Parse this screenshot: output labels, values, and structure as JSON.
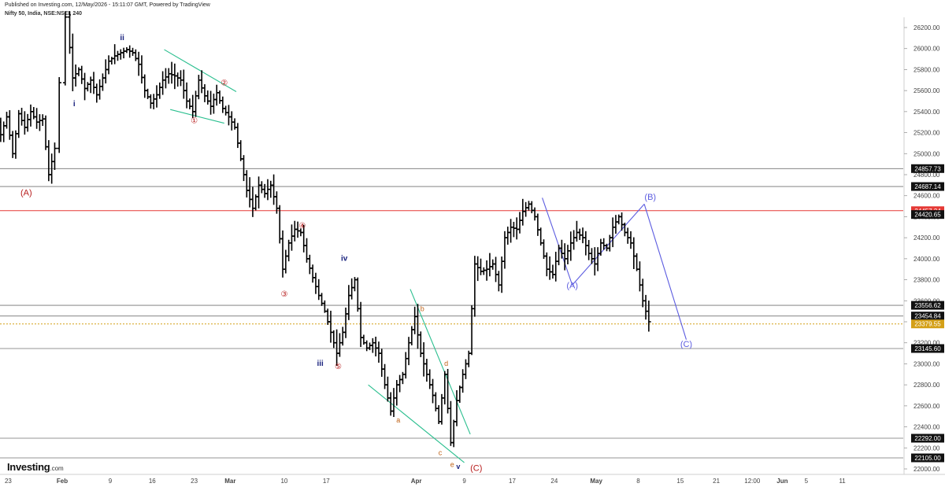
{
  "header": {
    "published": "Published on Investing.com, 12/May/2026 - 15:11:07 GMT, Powered by TradingView",
    "symbol": "Nifty 50, India, NSE:NSEI, 240"
  },
  "logo": {
    "text": "Investing",
    "suffix": ".com"
  },
  "colors": {
    "bars": "#000000",
    "red_line": "#e53935",
    "orange_line": "#d4a017",
    "blue_wave": "#5c5ce0",
    "teal_channel": "#2bbf8f",
    "red_label": "#b71c1c",
    "blue_label": "#1a237e",
    "orange_label": "#c0641a",
    "grid_line": "#000000"
  },
  "chart_data": {
    "type": "ohlc",
    "interval": "240",
    "y_axis": {
      "min": 22000,
      "max": 26200,
      "ticks": [
        22000,
        22200,
        22400,
        22600,
        22800,
        23000,
        23200,
        23400,
        23600,
        23800,
        24000,
        24200,
        24400,
        24600,
        24800,
        25000,
        25200,
        25400,
        25600,
        25800,
        26000,
        26200
      ],
      "tick_labels": [
        "22000.00",
        "22200.00",
        "22400.00",
        "22600.00",
        "22800.00",
        "23000.00",
        "23200.00",
        "23400.00",
        "23600.00",
        "23800.00",
        "24000.00",
        "24200.00",
        "24400.00",
        "24600.00",
        "24800.00",
        "25000.00",
        "25200.00",
        "25400.00",
        "25600.00",
        "25800.00",
        "26000.00",
        "26200.00"
      ]
    },
    "x_axis": {
      "labels": [
        {
          "text": "23",
          "day": -9
        },
        {
          "text": "Feb",
          "day": 0,
          "bold": true
        },
        {
          "text": "9",
          "day": 8
        },
        {
          "text": "16",
          "day": 15
        },
        {
          "text": "23",
          "day": 22
        },
        {
          "text": "Mar",
          "day": 28,
          "bold": true
        },
        {
          "text": "10",
          "day": 37
        },
        {
          "text": "17",
          "day": 44
        },
        {
          "text": "Apr",
          "day": 59,
          "bold": true
        },
        {
          "text": "9",
          "day": 67
        },
        {
          "text": "17",
          "day": 75
        },
        {
          "text": "24",
          "day": 82
        },
        {
          "text": "May",
          "day": 89,
          "bold": true
        },
        {
          "text": "8",
          "day": 96
        },
        {
          "text": "15",
          "day": 103
        },
        {
          "text": "21",
          "day": 109
        },
        {
          "text": "12:00",
          "day": 115
        },
        {
          "text": "Jun",
          "day": 120,
          "bold": true
        },
        {
          "text": "5",
          "day": 124
        },
        {
          "text": "11",
          "day": 130
        }
      ]
    },
    "horizontal_levels": [
      {
        "value": 24857.73,
        "label": "24857.73",
        "style": "gray"
      },
      {
        "value": 24687.14,
        "label": "24687.14",
        "style": "gray"
      },
      {
        "value": 24457.24,
        "label": "24457.24",
        "style": "red"
      },
      {
        "value": 24420.65,
        "label": "24420.65",
        "style": "last"
      },
      {
        "value": 23556.62,
        "label": "23556.62",
        "style": "gray"
      },
      {
        "value": 23454.84,
        "label": "23454.84",
        "style": "gray"
      },
      {
        "value": 23379.55,
        "label": "23379.55",
        "style": "current"
      },
      {
        "value": 23145.6,
        "label": "23145.60",
        "style": "gray"
      },
      {
        "value": 22292.0,
        "label": "22292.00",
        "style": "gray"
      },
      {
        "value": 22105.0,
        "label": "22105.00",
        "style": "gray"
      }
    ],
    "price_path": [
      {
        "day": -12,
        "p": 25100
      },
      {
        "day": -11,
        "p": 25420
      },
      {
        "day": -10,
        "p": 25180
      },
      {
        "day": -9,
        "p": 25350
      },
      {
        "day": -8,
        "p": 25000
      },
      {
        "day": -7,
        "p": 25380
      },
      {
        "day": -6,
        "p": 25250
      },
      {
        "day": -5,
        "p": 25400
      },
      {
        "day": -4,
        "p": 25300
      },
      {
        "day": -3,
        "p": 25330
      },
      {
        "day": -2,
        "p": 24800
      },
      {
        "day": -1,
        "p": 25050
      },
      {
        "day": 1,
        "p": 26300
      },
      {
        "day": 2,
        "p": 25720
      },
      {
        "day": 3,
        "p": 25800
      },
      {
        "day": 4,
        "p": 25620
      },
      {
        "day": 5,
        "p": 25700
      },
      {
        "day": 6,
        "p": 25560
      },
      {
        "day": 7,
        "p": 25720
      },
      {
        "day": 8,
        "p": 25880
      },
      {
        "day": 9,
        "p": 25930
      },
      {
        "day": 10,
        "p": 25960
      },
      {
        "day": 11,
        "p": 25990
      },
      {
        "day": 12,
        "p": 25960
      },
      {
        "day": 13,
        "p": 25850
      },
      {
        "day": 14,
        "p": 25600
      },
      {
        "day": 15,
        "p": 25480
      },
      {
        "day": 16,
        "p": 25560
      },
      {
        "day": 17,
        "p": 25700
      },
      {
        "day": 18,
        "p": 25760
      },
      {
        "day": 19,
        "p": 25740
      },
      {
        "day": 20,
        "p": 25700
      },
      {
        "day": 21,
        "p": 25500
      },
      {
        "day": 22,
        "p": 25400
      },
      {
        "day": 23,
        "p": 25700
      },
      {
        "day": 24,
        "p": 25550
      },
      {
        "day": 25,
        "p": 25450
      },
      {
        "day": 26,
        "p": 25580
      },
      {
        "day": 27,
        "p": 25430
      },
      {
        "day": 28,
        "p": 25350
      },
      {
        "day": 29,
        "p": 25250
      },
      {
        "day": 30,
        "p": 24950
      },
      {
        "day": 31,
        "p": 24650
      },
      {
        "day": 32,
        "p": 24480
      },
      {
        "day": 33,
        "p": 24700
      },
      {
        "day": 34,
        "p": 24620
      },
      {
        "day": 35,
        "p": 24700
      },
      {
        "day": 36,
        "p": 24480
      },
      {
        "day": 37,
        "p": 23900
      },
      {
        "day": 38,
        "p": 24150
      },
      {
        "day": 39,
        "p": 24280
      },
      {
        "day": 40,
        "p": 24250
      },
      {
        "day": 41,
        "p": 24000
      },
      {
        "day": 42,
        "p": 23820
      },
      {
        "day": 43,
        "p": 23650
      },
      {
        "day": 44,
        "p": 23500
      },
      {
        "day": 45,
        "p": 23300
      },
      {
        "day": 46,
        "p": 23100
      },
      {
        "day": 47,
        "p": 23300
      },
      {
        "day": 48,
        "p": 23650
      },
      {
        "day": 49,
        "p": 23800
      },
      {
        "day": 50,
        "p": 23250
      },
      {
        "day": 51,
        "p": 23150
      },
      {
        "day": 52,
        "p": 23200
      },
      {
        "day": 53,
        "p": 23100
      },
      {
        "day": 54,
        "p": 22800
      },
      {
        "day": 55,
        "p": 22550
      },
      {
        "day": 56,
        "p": 22800
      },
      {
        "day": 57,
        "p": 22900
      },
      {
        "day": 58,
        "p": 23200
      },
      {
        "day": 59,
        "p": 23450
      },
      {
        "day": 60,
        "p": 23100
      },
      {
        "day": 61,
        "p": 22900
      },
      {
        "day": 62,
        "p": 22700
      },
      {
        "day": 63,
        "p": 22450
      },
      {
        "day": 64,
        "p": 22900
      },
      {
        "day": 65,
        "p": 22250
      },
      {
        "day": 66,
        "p": 22650
      },
      {
        "day": 67,
        "p": 22900
      },
      {
        "day": 68,
        "p": 23100
      },
      {
        "day": 69,
        "p": 23950
      },
      {
        "day": 70,
        "p": 23880
      },
      {
        "day": 71,
        "p": 23900
      },
      {
        "day": 72,
        "p": 23950
      },
      {
        "day": 73,
        "p": 23750
      },
      {
        "day": 74,
        "p": 24200
      },
      {
        "day": 75,
        "p": 24300
      },
      {
        "day": 76,
        "p": 24280
      },
      {
        "day": 77,
        "p": 24450
      },
      {
        "day": 78,
        "p": 24520
      },
      {
        "day": 79,
        "p": 24400
      },
      {
        "day": 80,
        "p": 24150
      },
      {
        "day": 81,
        "p": 23900
      },
      {
        "day": 82,
        "p": 23850
      },
      {
        "day": 83,
        "p": 24100
      },
      {
        "day": 84,
        "p": 24000
      },
      {
        "day": 85,
        "p": 24150
      },
      {
        "day": 86,
        "p": 24250
      },
      {
        "day": 87,
        "p": 24200
      },
      {
        "day": 88,
        "p": 24050
      },
      {
        "day": 89,
        "p": 23950
      },
      {
        "day": 90,
        "p": 24150
      },
      {
        "day": 91,
        "p": 24100
      },
      {
        "day": 92,
        "p": 24300
      },
      {
        "day": 93,
        "p": 24400
      },
      {
        "day": 94,
        "p": 24250
      },
      {
        "day": 95,
        "p": 24150
      },
      {
        "day": 96,
        "p": 23900
      },
      {
        "day": 97,
        "p": 23600
      },
      {
        "day": 98,
        "p": 23400
      }
    ],
    "annotations": [
      {
        "text": "(A)",
        "day": -6,
        "p": 24600,
        "color": "red",
        "size": 11
      },
      {
        "text": "i",
        "day": 2,
        "p": 25450,
        "color": "blue",
        "size": 10,
        "bold": true
      },
      {
        "text": "ii",
        "day": 10,
        "p": 26080,
        "color": "blue",
        "size": 10,
        "bold": true
      },
      {
        "text": "①",
        "day": 22,
        "p": 25290,
        "color": "red",
        "size": 10
      },
      {
        "text": "②",
        "day": 27,
        "p": 25650,
        "color": "red",
        "size": 10
      },
      {
        "text": "④",
        "day": 40,
        "p": 24290,
        "color": "red",
        "size": 10
      },
      {
        "text": "iv",
        "day": 47,
        "p": 23980,
        "color": "blue",
        "size": 10,
        "bold": true
      },
      {
        "text": "③",
        "day": 37,
        "p": 23640,
        "color": "red",
        "size": 10
      },
      {
        "text": "iii",
        "day": 43,
        "p": 22980,
        "color": "blue",
        "size": 10,
        "bold": true
      },
      {
        "text": "⑤",
        "day": 46,
        "p": 22950,
        "color": "red",
        "size": 10
      },
      {
        "text": "b",
        "day": 60,
        "p": 23500,
        "color": "orange",
        "size": 9
      },
      {
        "text": "d",
        "day": 64,
        "p": 22980,
        "color": "orange",
        "size": 9
      },
      {
        "text": "a",
        "day": 56,
        "p": 22440,
        "color": "orange",
        "size": 9
      },
      {
        "text": "c",
        "day": 63,
        "p": 22130,
        "color": "orange",
        "size": 9
      },
      {
        "text": "e",
        "day": 65,
        "p": 22020,
        "color": "orange",
        "size": 9
      },
      {
        "text": "v",
        "day": 66,
        "p": 22000,
        "color": "blue",
        "size": 9,
        "bold": true
      },
      {
        "text": "(C)",
        "day": 69,
        "p": 21980,
        "color": "red",
        "size": 11
      },
      {
        "text": "(B)",
        "day": 98,
        "p": 24560,
        "color": "blue_wave",
        "size": 11
      },
      {
        "text": "(A)",
        "day": 85,
        "p": 23720,
        "color": "blue_wave",
        "size": 11
      },
      {
        "text": "(C)",
        "day": 104,
        "p": 23160,
        "color": "blue_wave",
        "size": 11
      }
    ],
    "trendlines": [
      {
        "color": "teal",
        "from": {
          "day": 17,
          "p": 25990
        },
        "to": {
          "day": 29,
          "p": 25590
        }
      },
      {
        "color": "teal",
        "from": {
          "day": 18,
          "p": 25420
        },
        "to": {
          "day": 27,
          "p": 25290
        }
      },
      {
        "color": "teal",
        "from": {
          "day": 51,
          "p": 22800
        },
        "to": {
          "day": 67,
          "p": 22060
        }
      },
      {
        "color": "teal",
        "from": {
          "day": 58,
          "p": 23710
        },
        "to": {
          "day": 68,
          "p": 22330
        }
      },
      {
        "color": "blue",
        "from": {
          "day": 80,
          "p": 24580
        },
        "to": {
          "day": 85,
          "p": 23750
        }
      },
      {
        "color": "blue",
        "from": {
          "day": 85,
          "p": 23750
        },
        "to": {
          "day": 97,
          "p": 24520
        }
      },
      {
        "color": "blue",
        "from": {
          "day": 97,
          "p": 24520
        },
        "to": {
          "day": 104,
          "p": 23230
        }
      }
    ]
  }
}
